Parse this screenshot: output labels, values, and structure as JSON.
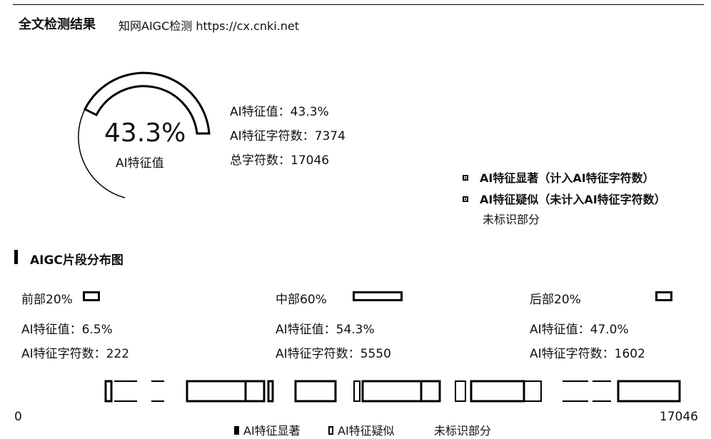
{
  "header": {
    "title": "全文检测结果",
    "subtitle": "知网AIGC检测  https://cx.cnki.net"
  },
  "gauge": {
    "value_text": "43.3%",
    "label": "AI特征值",
    "fraction": 0.433
  },
  "stats": {
    "ai_value": {
      "label": "AI特征值：",
      "value": "43.3%"
    },
    "ai_chars": {
      "label": "AI特征字符数：",
      "value": "7374"
    },
    "total_chars": {
      "label": "总字符数：",
      "value": "17046"
    }
  },
  "legend": {
    "significant": "AI特征显著（计入AI特征字符数）",
    "suspected": "AI特征疑似（未计入AI特征字符数）",
    "unidentified": "未标识部分"
  },
  "section": {
    "title": "AIGC片段分布图"
  },
  "segments": [
    {
      "head": "前部20%",
      "ai_value": "AI特征值：6.5%",
      "ai_chars": "AI特征字符数：222"
    },
    {
      "head": "中部60%",
      "ai_value": "AI特征值：54.3%",
      "ai_chars": "AI特征字符数：5550"
    },
    {
      "head": "后部20%",
      "ai_value": "AI特征值：47.0%",
      "ai_chars": "AI特征字符数：1602"
    }
  ],
  "distribution": {
    "start": "0",
    "end": "17046",
    "total": 17046
  },
  "bottom_legend": {
    "significant": "AI特征显著",
    "suspected": "AI特征疑似",
    "unidentified": "未标识部分"
  }
}
